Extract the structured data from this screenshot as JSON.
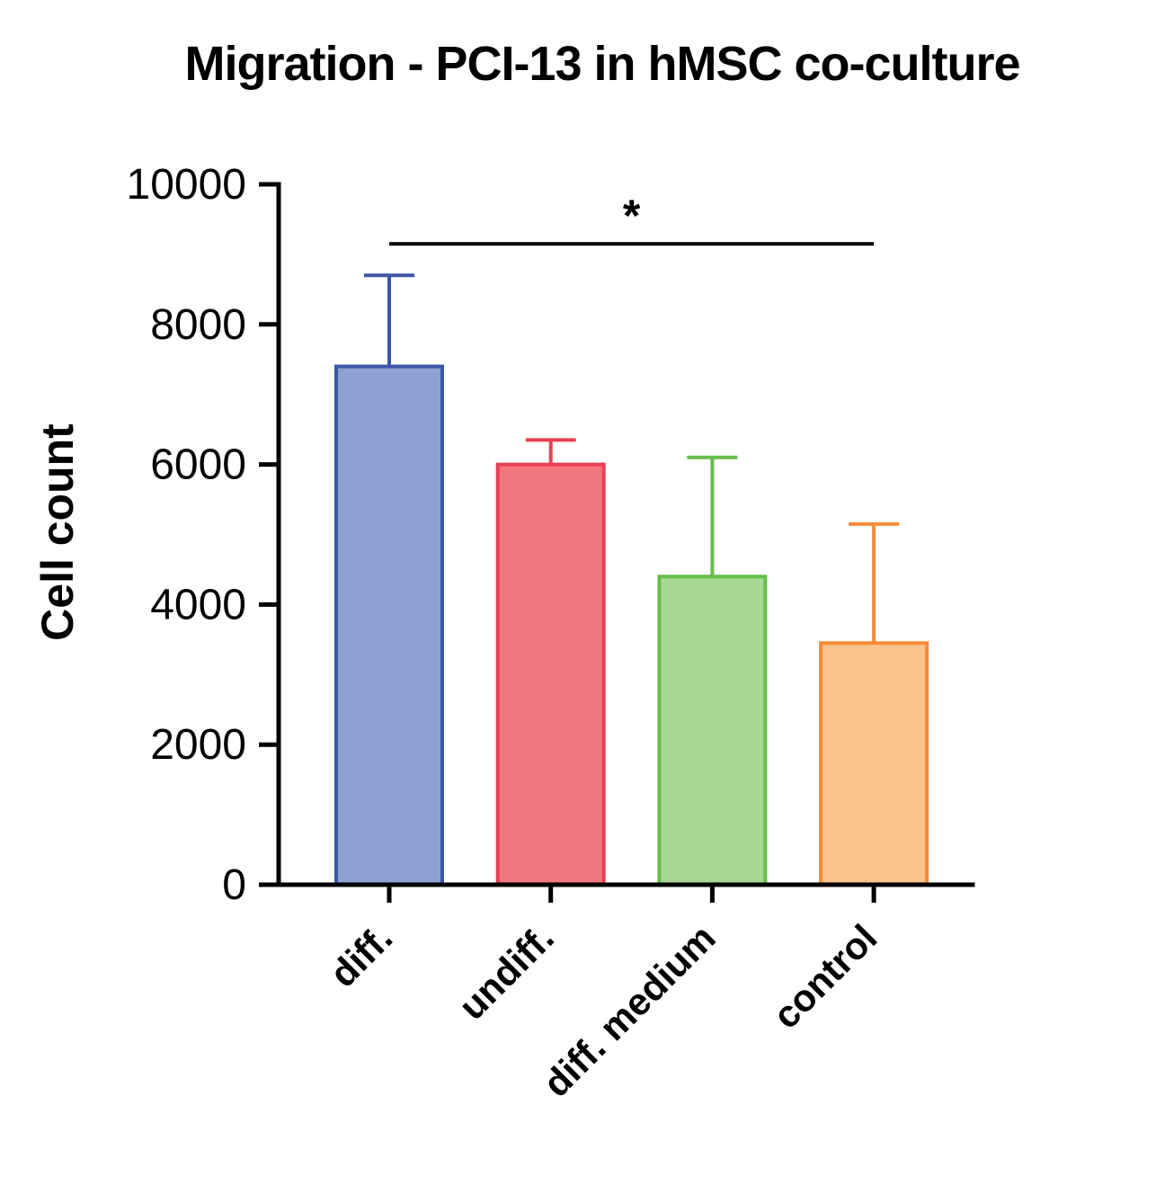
{
  "chart_data": {
    "type": "bar",
    "title": "Migration - PCI-13 in hMSC co-culture",
    "ylabel": "Cell count",
    "xlabel": "",
    "categories": [
      "diff.",
      "undiff.",
      "diff. medium",
      "control"
    ],
    "values": [
      7400,
      6000,
      4400,
      3450
    ],
    "errors_up": [
      1300,
      350,
      1700,
      1700
    ],
    "ylim": [
      0,
      10000
    ],
    "yticks": [
      0,
      2000,
      4000,
      6000,
      8000,
      10000
    ],
    "bar_fill_colors": [
      "#8FA1D3",
      "#F2767E",
      "#A8D693",
      "#FAC38C"
    ],
    "bar_edge_colors": [
      "#3D56A6",
      "#E8404F",
      "#67BD4B",
      "#F68B3B"
    ],
    "axis_color": "#000000",
    "grid": false,
    "legend_position": "none",
    "significance": {
      "label": "*",
      "from_category": "diff.",
      "to_category": "control",
      "y": 9150
    }
  }
}
